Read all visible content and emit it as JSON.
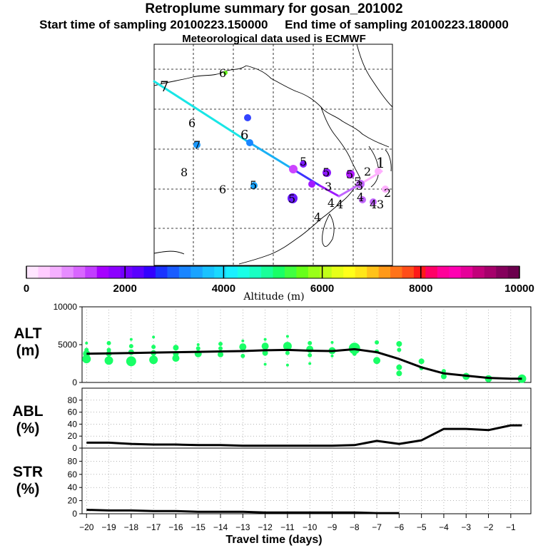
{
  "header": {
    "title": "Retroplume summary for gosan_201002",
    "sampling": "Start time of sampling 20100223.150000     End time of sampling 20100223.180000",
    "met": "Meteorological data used is ECMWF"
  },
  "colorbar": {
    "title": "Altitude (m)",
    "ticks": [
      0,
      2000,
      4000,
      6000,
      8000,
      10000
    ],
    "tick_labels": [
      "0",
      "2000",
      "4000",
      "6000",
      "8000",
      "10000"
    ],
    "colors": [
      "#ffe6ff",
      "#ffccff",
      "#f5b0ff",
      "#e68cff",
      "#d966ff",
      "#c23dff",
      "#a600ff",
      "#8c00ff",
      "#7300ff",
      "#5a00ff",
      "#3300ff",
      "#1a33ff",
      "#1a5cff",
      "#1a85ff",
      "#1aa3ff",
      "#19c2ff",
      "#19d9ff",
      "#19f0ff",
      "#19ffe6",
      "#19ffc2",
      "#19ff99",
      "#19ff66",
      "#40ff40",
      "#66ff19",
      "#99ff19",
      "#c2ff19",
      "#e6ff19",
      "#ffff19",
      "#ffe619",
      "#ffc219",
      "#ff9919",
      "#ff7319",
      "#ff4d19",
      "#ff1919",
      "#ff0066",
      "#ff0099",
      "#ff00b2",
      "#e60099",
      "#c2007a",
      "#a6006b",
      "#85005c",
      "#6b004d"
    ]
  },
  "map": {
    "route": {
      "segments": [
        {
          "from": [
            216,
            114
          ],
          "to": [
            345,
            197
          ],
          "color": "#19e6e6"
        },
        {
          "from": [
            345,
            197
          ],
          "to": [
            412,
            238
          ],
          "color": "#19b0f5"
        },
        {
          "from": [
            412,
            238
          ],
          "to": [
            448,
            260
          ],
          "color": "#3d33ff"
        },
        {
          "from": [
            448,
            260
          ],
          "to": [
            475,
            275
          ],
          "color": "#9d1aff"
        },
        {
          "from": [
            475,
            275
          ],
          "to": [
            510,
            255
          ],
          "color": "#c266ff"
        },
        {
          "from": [
            510,
            255
          ],
          "to": [
            535,
            240
          ],
          "color": "#ffb0ff"
        }
      ]
    },
    "numbers": [
      "7",
      "6",
      "6",
      "6",
      "7",
      "8",
      "6",
      "5",
      "5",
      "5",
      "5",
      "5",
      "5",
      "4",
      "4",
      "4",
      "4",
      "4",
      "3",
      "3",
      "3",
      "2",
      "2",
      "1"
    ]
  },
  "chart_data": [
    {
      "type": "line",
      "panel": "ALT",
      "label_line1": "ALT",
      "label_line2": "(m)",
      "xlabel": "Travel time (days)",
      "ylabel": "ALT (m)",
      "ylim": [
        0,
        10000
      ],
      "yticks": [
        10000,
        5000,
        0
      ],
      "x": [
        -20,
        -19,
        -18,
        -17,
        -16,
        -15,
        -14,
        -13,
        -12,
        -11,
        -10,
        -9,
        -8,
        -7,
        -6,
        -5,
        -4,
        -3,
        -2,
        -1,
        -0.5
      ],
      "series": [
        {
          "name": "mean altitude",
          "color": "#000000",
          "values": [
            3800,
            3850,
            3900,
            3950,
            4000,
            4050,
            4100,
            4150,
            4250,
            4300,
            4200,
            4150,
            4400,
            4000,
            3100,
            2000,
            1200,
            900,
            600,
            500,
            500
          ]
        }
      ],
      "clusters": [
        {
          "x": -20,
          "points": [
            [
              5200,
              2
            ],
            [
              4300,
              3
            ],
            [
              3800,
              5
            ],
            [
              3100,
              6
            ]
          ]
        },
        {
          "x": -19,
          "points": [
            [
              5200,
              3
            ],
            [
              4300,
              3
            ],
            [
              3800,
              4
            ],
            [
              2900,
              6
            ]
          ]
        },
        {
          "x": -18,
          "points": [
            [
              5700,
              2
            ],
            [
              4800,
              3
            ],
            [
              4000,
              4
            ],
            [
              2800,
              7
            ]
          ]
        },
        {
          "x": -17,
          "points": [
            [
              6000,
              2
            ],
            [
              4700,
              3
            ],
            [
              3900,
              4
            ],
            [
              3000,
              6
            ]
          ]
        },
        {
          "x": -16,
          "points": [
            [
              4600,
              4
            ],
            [
              3800,
              4
            ],
            [
              3200,
              5
            ]
          ]
        },
        {
          "x": -15,
          "points": [
            [
              5000,
              2
            ],
            [
              4500,
              3
            ],
            [
              3800,
              5
            ]
          ]
        },
        {
          "x": -14,
          "points": [
            [
              5100,
              3
            ],
            [
              4500,
              3
            ],
            [
              3700,
              4
            ]
          ]
        },
        {
          "x": -13,
          "points": [
            [
              5500,
              2
            ],
            [
              4700,
              5
            ],
            [
              3500,
              3
            ]
          ]
        },
        {
          "x": -12,
          "points": [
            [
              5700,
              2
            ],
            [
              4800,
              5
            ],
            [
              3900,
              4
            ],
            [
              2400,
              2
            ]
          ]
        },
        {
          "x": -11,
          "points": [
            [
              6100,
              2
            ],
            [
              4800,
              6
            ],
            [
              3900,
              3
            ],
            [
              2300,
              2
            ]
          ]
        },
        {
          "x": -10,
          "points": [
            [
              5200,
              3
            ],
            [
              4400,
              5
            ],
            [
              3600,
              3
            ],
            [
              2500,
              2
            ]
          ]
        },
        {
          "x": -9,
          "points": [
            [
              5300,
              2
            ],
            [
              4200,
              5
            ],
            [
              3500,
              2
            ]
          ]
        },
        {
          "x": -8,
          "points": [
            [
              4500,
              8
            ],
            [
              3800,
              3
            ]
          ]
        },
        {
          "x": -7,
          "points": [
            [
              5300,
              3
            ],
            [
              4100,
              3
            ],
            [
              2900,
              5
            ]
          ]
        },
        {
          "x": -6,
          "points": [
            [
              5100,
              4
            ],
            [
              4300,
              3
            ],
            [
              2000,
              4
            ],
            [
              1200,
              4
            ]
          ]
        },
        {
          "x": -5,
          "points": [
            [
              2800,
              4
            ],
            [
              1900,
              3
            ]
          ]
        },
        {
          "x": -4,
          "points": [
            [
              1500,
              3
            ],
            [
              800,
              4
            ]
          ]
        },
        {
          "x": -3,
          "points": [
            [
              800,
              5
            ]
          ]
        },
        {
          "x": -2,
          "points": [
            [
              500,
              5
            ]
          ]
        },
        {
          "x": -0.5,
          "points": [
            [
              500,
              6
            ]
          ]
        }
      ]
    },
    {
      "type": "line",
      "panel": "ABL",
      "label_line1": "ABL",
      "label_line2": "(%)",
      "ylabel": "ABL (%)",
      "ylim": [
        0,
        100
      ],
      "yticks": [
        0,
        20,
        40,
        60,
        80
      ],
      "x": [
        -20,
        -19,
        -18,
        -17,
        -16,
        -15,
        -14,
        -13,
        -12,
        -11,
        -10,
        -9,
        -8,
        -7,
        -6,
        -5,
        -4,
        -3,
        -2,
        -1,
        -0.5
      ],
      "series": [
        {
          "name": "ABL fraction",
          "color": "#000000",
          "values": [
            9,
            9,
            7,
            6,
            6,
            5,
            5,
            4,
            4,
            4,
            4,
            4,
            5,
            12,
            7,
            13,
            32,
            32,
            30,
            38,
            38
          ]
        }
      ]
    },
    {
      "type": "line",
      "panel": "STR",
      "label_line1": "STR",
      "label_line2": "(%)",
      "ylabel": "STR (%)",
      "ylim": [
        0,
        100
      ],
      "yticks": [
        0,
        20,
        40,
        60,
        80
      ],
      "x": [
        -20,
        -19,
        -18,
        -17,
        -16,
        -15,
        -14,
        -13,
        -12,
        -11,
        -10,
        -9,
        -8,
        -7,
        -6
      ],
      "series": [
        {
          "name": "STR fraction",
          "color": "#000000",
          "values": [
            6,
            5,
            5,
            4,
            4,
            3,
            3,
            3,
            2,
            2,
            2,
            2,
            2,
            1,
            1
          ]
        }
      ]
    }
  ],
  "xaxis": {
    "ticks": [
      -20,
      -19,
      -18,
      -17,
      -16,
      -15,
      -14,
      -13,
      -12,
      -11,
      -10,
      -9,
      -8,
      -7,
      -6,
      -5,
      -4,
      -3,
      -2,
      -1
    ],
    "tick_labels": [
      "−20",
      "−19",
      "−18",
      "−17",
      "−16",
      "−15",
      "−14",
      "−13",
      "−12",
      "−11",
      "−10",
      "−9",
      "−8",
      "−7",
      "−6",
      "−5",
      "−4",
      "−3",
      "−2",
      "−1"
    ],
    "label": "Travel time (days)",
    "range": [
      -20.2,
      -0.1
    ]
  }
}
